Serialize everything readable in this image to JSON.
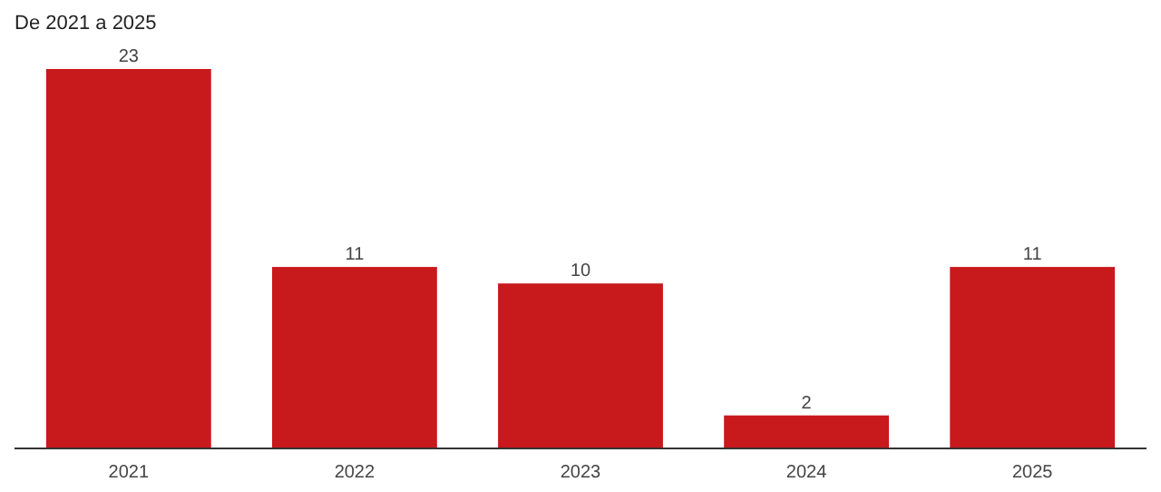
{
  "chart_data": {
    "type": "bar",
    "title": "De 2021 a 2025",
    "categories": [
      "2021",
      "2022",
      "2023",
      "2024",
      "2025"
    ],
    "values": [
      23,
      11,
      10,
      2,
      11
    ],
    "color": "#c8191c",
    "data_labels": true
  }
}
